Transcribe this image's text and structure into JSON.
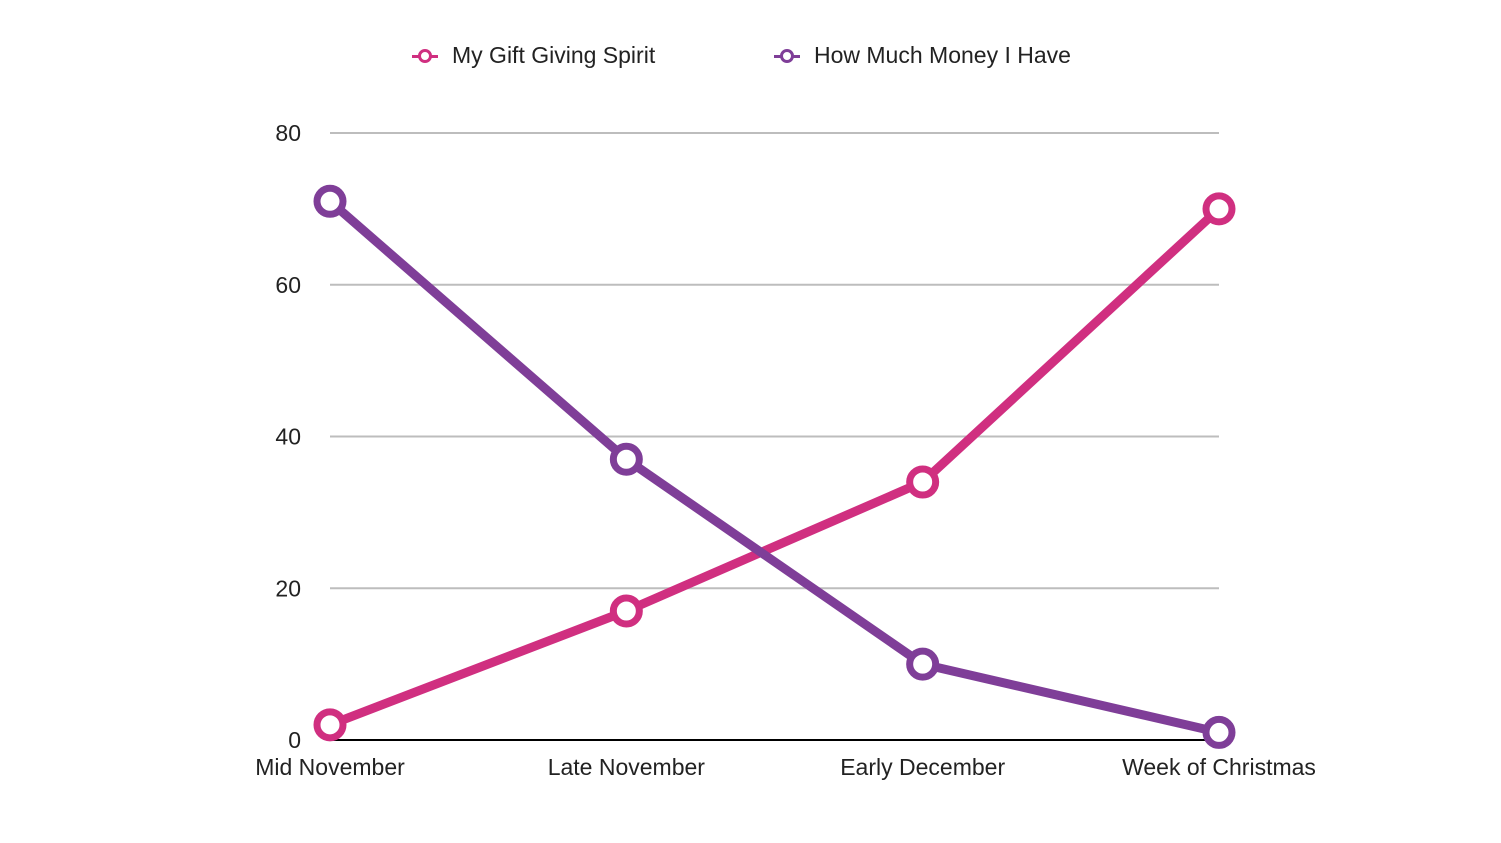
{
  "chart_data": {
    "type": "line",
    "title": "",
    "xlabel": "",
    "ylabel": "",
    "categories": [
      "Mid November",
      "Late November",
      "Early December",
      "Week of Christmas"
    ],
    "series": [
      {
        "name": "My Gift Giving Spirit",
        "color": "#d02f80",
        "values": [
          2,
          17,
          34,
          70
        ]
      },
      {
        "name": "How Much Money I Have",
        "color": "#7f3e98",
        "values": [
          71,
          37,
          10,
          1
        ]
      }
    ],
    "ylim": [
      0,
      80
    ],
    "yticks": [
      "0",
      "20",
      "40",
      "60",
      "80"
    ],
    "grid": true,
    "legend": "top-center"
  }
}
